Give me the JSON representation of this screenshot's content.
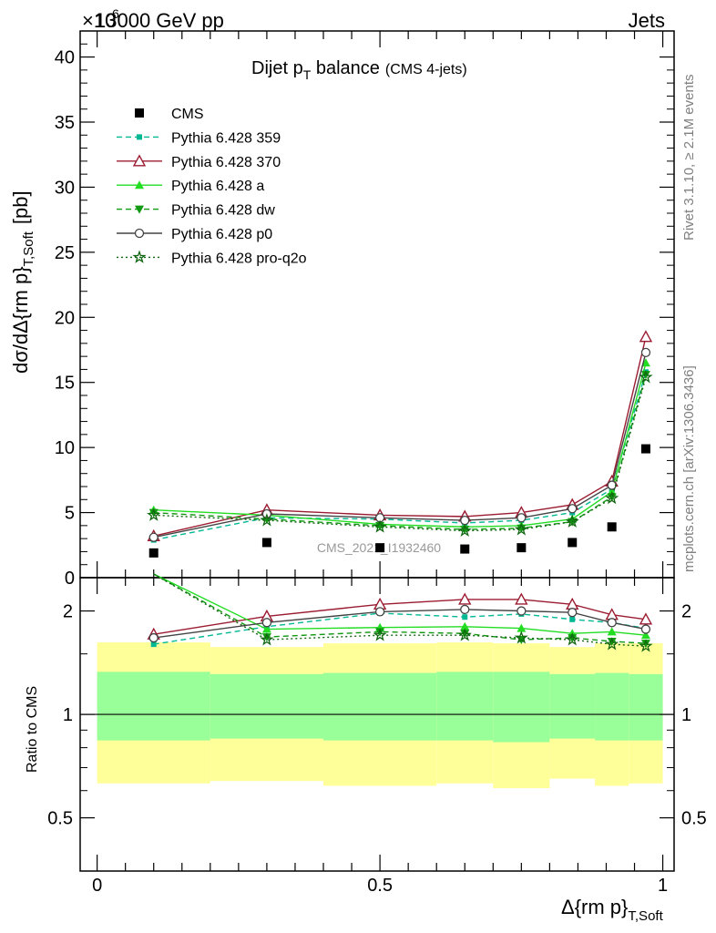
{
  "header": {
    "left": "13000 GeV pp",
    "right": "Jets",
    "exponent": "×10",
    "exponent_power": "6"
  },
  "side_labels": {
    "top": "Rivet 3.1.10, ≥ 2.1M events",
    "bottom": "mcplots.cern.ch [arXiv:1306.3436]"
  },
  "watermark": "CMS_2021_I1932460",
  "chart_data": [
    {
      "type": "line",
      "panel": "main",
      "title": "Dijet p",
      "title_sub": "T",
      "title_rest": " balance",
      "title_note": "(CMS 4-jets)",
      "ylabel": "dσ/dΔ{rm p}",
      "ylabel_sub": "T,Soft",
      "ylabel_unit": "[pb]",
      "ylim": [
        0,
        42
      ],
      "y_ticks": [
        0,
        5,
        10,
        15,
        20,
        25,
        30,
        35,
        40
      ],
      "x": [
        0.1,
        0.3,
        0.5,
        0.65,
        0.75,
        0.84,
        0.91,
        0.97
      ],
      "data": {
        "name": "CMS",
        "values": [
          1.9,
          2.7,
          2.3,
          2.2,
          2.3,
          2.7,
          3.9,
          9.9
        ]
      },
      "series": [
        {
          "name": "Pythia 6.428 359",
          "color": "#00b894",
          "dash": "6,4",
          "marker": "square-small",
          "values": [
            2.9,
            4.6,
            4.5,
            4.2,
            4.4,
            5.0,
            6.8,
            15.8
          ]
        },
        {
          "name": "Pythia 6.428 370",
          "color": "#9b1b30",
          "dash": "",
          "marker": "triangle-open",
          "values": [
            3.2,
            5.2,
            4.8,
            4.7,
            5.0,
            5.6,
            7.4,
            18.5
          ]
        },
        {
          "name": "Pythia 6.428 a",
          "color": "#22dd22",
          "dash": "",
          "marker": "triangle",
          "values": [
            5.2,
            4.8,
            4.1,
            3.9,
            4.0,
            4.5,
            6.6,
            16.5
          ]
        },
        {
          "name": "Pythia 6.428 dw",
          "color": "#119911",
          "dash": "6,4",
          "marker": "triangle-down",
          "values": [
            5.0,
            4.5,
            4.0,
            3.7,
            3.8,
            4.3,
            6.2,
            15.6
          ]
        },
        {
          "name": "Pythia 6.428 p0",
          "color": "#444444",
          "dash": "",
          "marker": "circle-open",
          "values": [
            3.1,
            4.9,
            4.6,
            4.4,
            4.6,
            5.3,
            7.1,
            17.3
          ]
        },
        {
          "name": "Pythia 6.428 pro-q2o",
          "color": "#116611",
          "dash": "2,3",
          "marker": "star",
          "values": [
            4.8,
            4.4,
            3.9,
            3.6,
            3.7,
            4.3,
            6.1,
            15.4
          ]
        }
      ]
    },
    {
      "type": "line",
      "panel": "ratio",
      "ylabel": "Ratio to CMS",
      "xlabel": "Δ{rm p}",
      "xlabel_sub": "T,Soft",
      "xlim": [
        -0.03,
        1.02
      ],
      "x_ticks": [
        0,
        0.5,
        1
      ],
      "x_tick_labels": [
        "0",
        "0.5",
        "1"
      ],
      "scale": "log",
      "ylim": [
        0.35,
        2.5
      ],
      "y_ticks": [
        0.5,
        1,
        2
      ],
      "y_tick_labels": [
        "0.5",
        "1",
        "2"
      ],
      "bands": {
        "edges": [
          0,
          0.2,
          0.4,
          0.6,
          0.7,
          0.8,
          0.88,
          0.94,
          1.0
        ],
        "inner_hi": [
          1.33,
          1.31,
          1.32,
          1.33,
          1.33,
          1.31,
          1.32,
          1.31
        ],
        "inner_lo": [
          0.84,
          0.85,
          0.84,
          0.84,
          0.83,
          0.85,
          0.84,
          0.84
        ],
        "outer_hi": [
          1.62,
          1.57,
          1.61,
          1.62,
          1.61,
          1.57,
          1.61,
          1.61
        ],
        "outer_lo": [
          0.63,
          0.64,
          0.62,
          0.63,
          0.61,
          0.65,
          0.62,
          0.63
        ]
      },
      "x": [
        0.1,
        0.3,
        0.5,
        0.65,
        0.75,
        0.84,
        0.91,
        0.97
      ],
      "series": [
        {
          "name": "Pythia 6.428 359",
          "values": [
            1.6,
            1.8,
            1.97,
            1.92,
            1.96,
            1.89,
            1.85,
            1.78
          ]
        },
        {
          "name": "Pythia 6.428 370",
          "values": [
            1.71,
            1.93,
            2.09,
            2.16,
            2.16,
            2.09,
            1.95,
            1.89
          ]
        },
        {
          "name": "Pythia 6.428 a",
          "values": [
            2.9,
            1.77,
            1.79,
            1.8,
            1.78,
            1.72,
            1.74,
            1.7
          ]
        },
        {
          "name": "Pythia 6.428 dw",
          "values": [
            2.8,
            1.68,
            1.74,
            1.72,
            1.65,
            1.67,
            1.63,
            1.61
          ]
        },
        {
          "name": "Pythia 6.428 p0",
          "values": [
            1.67,
            1.85,
            1.99,
            2.02,
            2.0,
            1.98,
            1.85,
            1.77
          ]
        },
        {
          "name": "Pythia 6.428 pro-q2o",
          "values": [
            2.6,
            1.65,
            1.7,
            1.7,
            1.67,
            1.65,
            1.6,
            1.58
          ]
        }
      ]
    }
  ]
}
